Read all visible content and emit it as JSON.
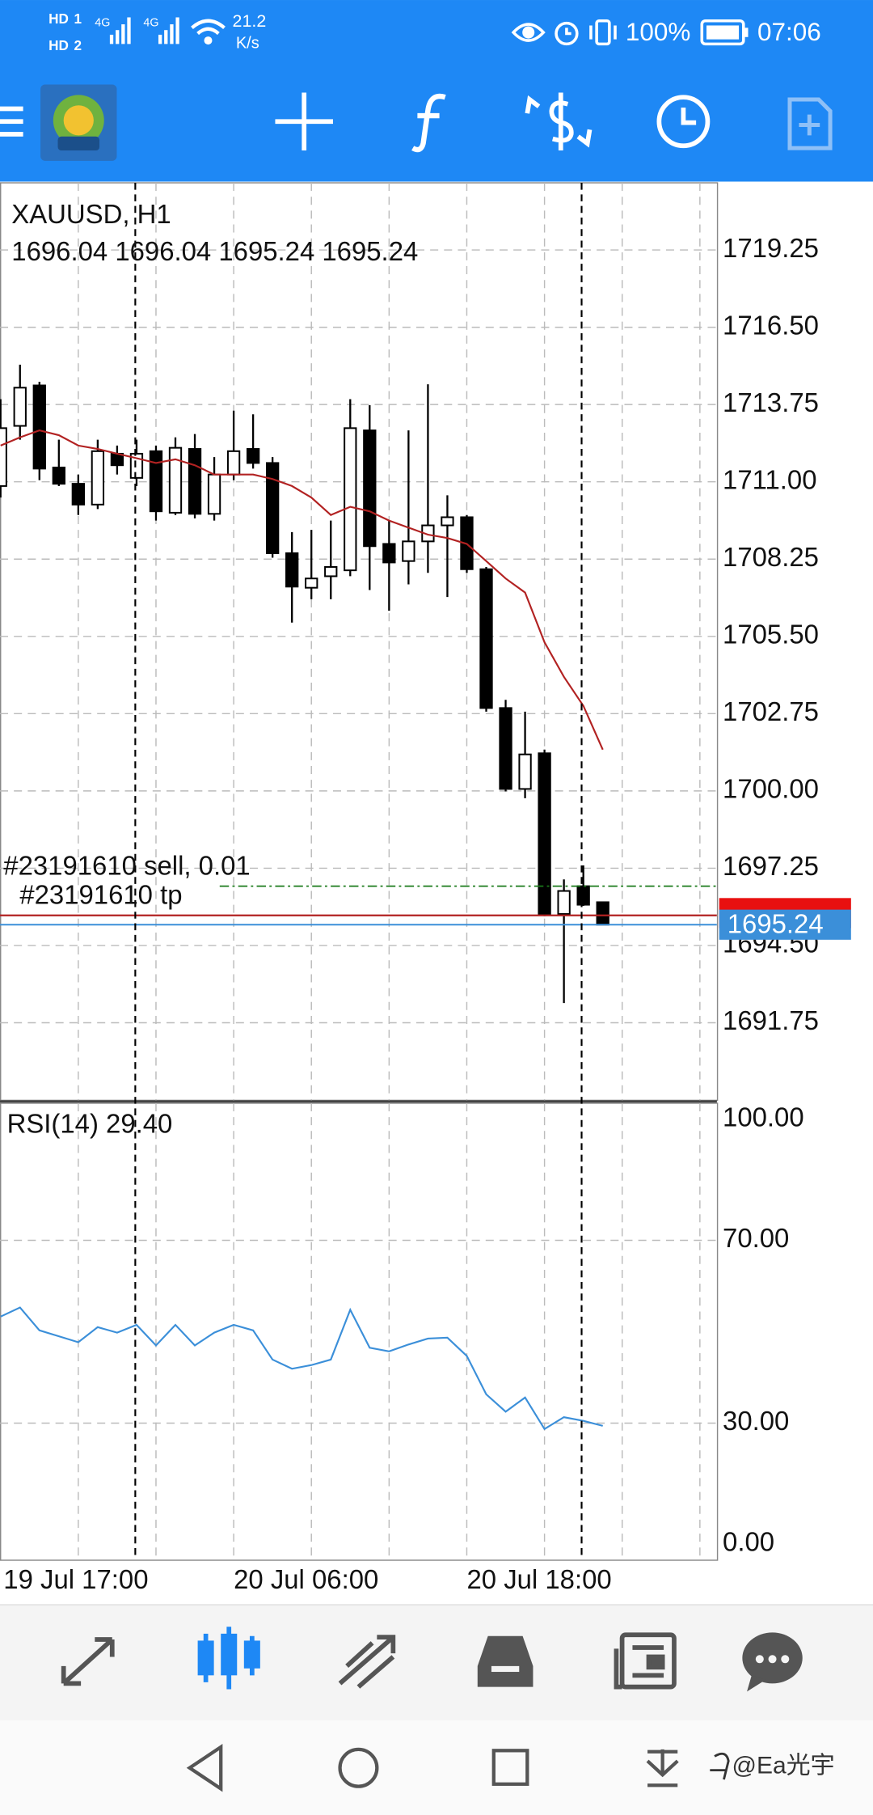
{
  "status_bar": {
    "sims": [
      {
        "badge": "HD",
        "slot": "1"
      },
      {
        "badge": "HD",
        "slot": "2"
      }
    ],
    "network": [
      "4G",
      "4G"
    ],
    "speed": "21.2",
    "speed_unit": "K/s",
    "battery": "100%",
    "time": "07:06"
  },
  "chart_data": [
    {
      "type": "candlestick",
      "title": "XAUUSD, H1",
      "subtitle": "1696.04 1696.04 1695.24 1695.24",
      "categories": [
        "19 Jul 17:00",
        null,
        null,
        null,
        null,
        null,
        null,
        null,
        null,
        null,
        null,
        null,
        "20 Jul 06:00",
        null,
        null,
        null,
        null,
        null,
        null,
        null,
        null,
        null,
        null,
        null,
        "20 Jul 18:00",
        null,
        null,
        null,
        null,
        null,
        null,
        null
      ],
      "open": [
        1710.85,
        1712.99,
        1714.43,
        1711.51,
        1710.93,
        1710.19,
        1712.0,
        1711.14,
        1712.09,
        1709.9,
        1712.17,
        1709.86,
        1711.26,
        1712.17,
        1711.67,
        1708.46,
        1707.23,
        1707.64,
        1707.85,
        1712.83,
        1708.79,
        1708.18,
        1708.88,
        1709.45,
        1709.74,
        1707.89,
        1702.95,
        1700.07,
        1701.34,
        1695.62,
        1696.61,
        1696.04
      ],
      "high": [
        1713.94,
        1715.17,
        1714.56,
        1712.5,
        1711.26,
        1712.5,
        1712.29,
        1712.5,
        1712.29,
        1712.58,
        1712.7,
        1711.88,
        1713.53,
        1713.4,
        1711.88,
        1709.21,
        1709.29,
        1709.62,
        1713.94,
        1713.73,
        1709.62,
        1712.83,
        1714.47,
        1710.52,
        1709.82,
        1707.97,
        1703.24,
        1702.82,
        1701.47,
        1696.85,
        1697.35,
        1696.04
      ],
      "low": [
        1710.44,
        1712.5,
        1711.06,
        1710.85,
        1709.82,
        1710.03,
        1711.26,
        1710.85,
        1709.62,
        1709.82,
        1709.7,
        1709.62,
        1711.06,
        1711.47,
        1708.3,
        1705.99,
        1706.82,
        1706.82,
        1707.64,
        1707.15,
        1706.41,
        1707.35,
        1707.76,
        1706.9,
        1707.76,
        1702.82,
        1699.98,
        1699.74,
        1695.54,
        1692.45,
        1695.91,
        1695.24
      ],
      "close": [
        1712.91,
        1714.35,
        1711.47,
        1710.93,
        1710.19,
        1712.09,
        1711.59,
        1712.0,
        1709.95,
        1712.21,
        1709.86,
        1711.26,
        1712.09,
        1711.67,
        1708.46,
        1707.27,
        1707.56,
        1707.97,
        1712.91,
        1708.71,
        1708.13,
        1708.88,
        1709.45,
        1709.74,
        1707.89,
        1702.95,
        1700.07,
        1701.3,
        1695.62,
        1696.44,
        1695.95,
        1695.24
      ],
      "up_color": "#ffffff",
      "down_color": "#000000",
      "moving_average": {
        "color": "#b22222",
        "values": [
          1712.29,
          1712.58,
          1712.83,
          1712.66,
          1712.29,
          1712.17,
          1712.0,
          1711.84,
          1711.67,
          1711.8,
          1711.59,
          1711.26,
          1711.26,
          1711.26,
          1711.1,
          1710.85,
          1710.44,
          1709.82,
          1710.11,
          1709.95,
          1709.62,
          1709.37,
          1709.12,
          1709.0,
          1708.79,
          1708.18,
          1707.56,
          1707.06,
          1705.29,
          1704.06,
          1703.03,
          1701.47
        ]
      },
      "ylim": [
        1688.99,
        1721.64
      ],
      "yticks": [
        1719.25,
        {
          "value": 1716.5,
          "label": "1716.50"
        },
        1713.75,
        {
          "value": 1711,
          "label": "1711.00"
        },
        1708.25,
        {
          "value": 1705.5,
          "label": "1705.50"
        },
        1702.75,
        {
          "value": 1700,
          "label": "1700.00"
        },
        1697.25,
        {
          "value": 1694.5,
          "label": "1694.50"
        },
        1691.75
      ],
      "grid": true,
      "levels": [
        {
          "name": "#23191610 sell, 0.01",
          "value": 1696.61,
          "color": "#1a7a1a",
          "style": "dash-dot"
        },
        {
          "name": "#23191610 tp",
          "value": 1695.57,
          "color": "#b22222",
          "style": "solid"
        }
      ],
      "bid": 1695.24,
      "bid_color": "#3b8fd9"
    },
    {
      "type": "line",
      "title": "RSI(14) 29.40",
      "values": [
        53.3,
        55.3,
        50.3,
        49.0,
        47.7,
        51.0,
        49.8,
        51.5,
        47.0,
        51.5,
        47.0,
        49.8,
        51.5,
        50.3,
        43.9,
        41.9,
        42.7,
        43.9,
        54.8,
        46.5,
        45.7,
        47.2,
        48.5,
        48.7,
        44.7,
        36.3,
        32.5,
        35.6,
        28.7,
        31.3,
        30.5,
        29.4
      ],
      "color": "#3b8fd9",
      "ylim": [
        0,
        100
      ],
      "yticks": [
        {
          "value": 0,
          "label": "0.00"
        },
        {
          "value": 30,
          "label": "30.00"
        },
        {
          "value": 70,
          "label": "70.00"
        },
        {
          "value": 100,
          "label": "100.00"
        }
      ],
      "grid": true
    }
  ],
  "watermark": "@Ea光宇"
}
